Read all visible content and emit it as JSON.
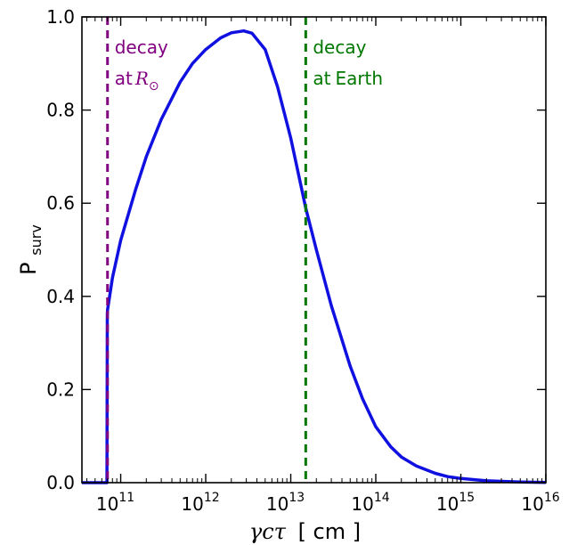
{
  "chart_data": {
    "type": "line",
    "xscale": "log",
    "xlim": [
      35000000000.0,
      1e+16
    ],
    "ylim": [
      0,
      1.0
    ],
    "xlabel": {
      "main": "γcτ",
      "unit": "[ cm ]"
    },
    "ylabel": {
      "main": "P",
      "sub": "surv"
    },
    "x_ticks": [
      {
        "value": 100000000000.0,
        "base": "10",
        "exp": "11"
      },
      {
        "value": 1000000000000.0,
        "base": "10",
        "exp": "12"
      },
      {
        "value": 10000000000000.0,
        "base": "10",
        "exp": "13"
      },
      {
        "value": 100000000000000.0,
        "base": "10",
        "exp": "14"
      },
      {
        "value": 1000000000000000.0,
        "base": "10",
        "exp": "15"
      },
      {
        "value": 1e+16,
        "base": "10",
        "exp": "16"
      }
    ],
    "y_ticks": [
      {
        "value": 0.0,
        "label": "0.0"
      },
      {
        "value": 0.2,
        "label": "0.2"
      },
      {
        "value": 0.4,
        "label": "0.4"
      },
      {
        "value": 0.6,
        "label": "0.6"
      },
      {
        "value": 0.8,
        "label": "0.8"
      },
      {
        "value": 1.0,
        "label": "1.0"
      }
    ],
    "grid": false,
    "series": [
      {
        "color": "#1010e0",
        "x": [
          35000000000.0,
          69000000000.0,
          69600000000.0,
          70000000000.0,
          80000000000.0,
          100000000000.0,
          150000000000.0,
          200000000000.0,
          300000000000.0,
          500000000000.0,
          700000000000.0,
          1000000000000.0,
          1500000000000.0,
          2000000000000.0,
          2800000000000.0,
          3500000000000.0,
          5000000000000.0,
          7000000000000.0,
          10000000000000.0,
          15000000000000.0,
          20000000000000.0,
          30000000000000.0,
          50000000000000.0,
          70000000000000.0,
          100000000000000.0,
          150000000000000.0,
          200000000000000.0,
          300000000000000.0,
          500000000000000.0,
          700000000000000.0,
          1000000000000000.0,
          2000000000000000.0,
          5000000000000000.0,
          1e+16
        ],
        "y": [
          0.0,
          0.0,
          0.36,
          0.37,
          0.44,
          0.52,
          0.63,
          0.7,
          0.78,
          0.86,
          0.9,
          0.93,
          0.955,
          0.966,
          0.97,
          0.965,
          0.93,
          0.85,
          0.74,
          0.59,
          0.5,
          0.38,
          0.25,
          0.18,
          0.12,
          0.077,
          0.055,
          0.036,
          0.02,
          0.013,
          0.009,
          0.004,
          0.0015,
          0.0005
        ]
      }
    ],
    "reference_lines": [
      {
        "x": 70000000000.0,
        "color": "#800080",
        "style": "dashed"
      },
      {
        "x": 15000000000000.0,
        "color": "#007700",
        "style": "dashed"
      }
    ],
    "annotations": [
      {
        "line1": "decay",
        "line2_prefix": "at",
        "line2_math": "R",
        "line2_sub": "⊙",
        "color": "#800080",
        "x": 70000000000.0
      },
      {
        "line1": "decay",
        "line2_prefix": "at",
        "line2_math": "",
        "line2_sub": "",
        "line2_suffix": "Earth",
        "color": "#007700",
        "x": 15000000000000.0
      }
    ]
  }
}
